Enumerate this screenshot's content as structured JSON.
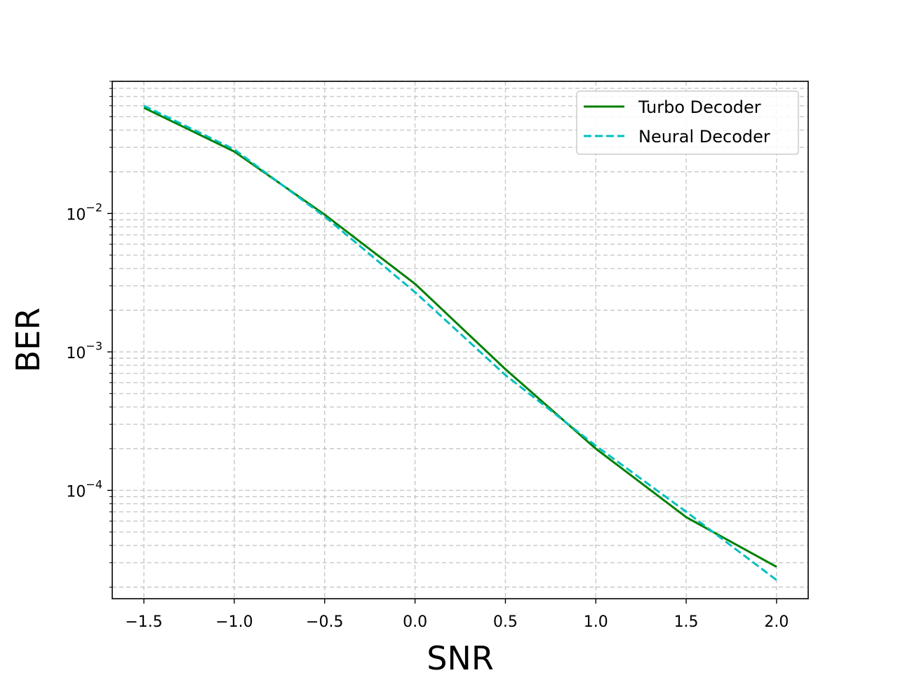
{
  "chart_data": {
    "type": "line",
    "xlabel": "SNR",
    "ylabel": "BER",
    "yscale": "log",
    "xlim": [
      -1.675,
      2.175
    ],
    "ylim": [
      1.65e-05,
      0.09
    ],
    "grid": true,
    "legend_position": "upper-right",
    "x_ticks": [
      {
        "value": -1.5,
        "label": "−1.5"
      },
      {
        "value": -1.0,
        "label": "−1.0"
      },
      {
        "value": -0.5,
        "label": "−0.5"
      },
      {
        "value": 0.0,
        "label": "0.0"
      },
      {
        "value": 0.5,
        "label": "0.5"
      },
      {
        "value": 1.0,
        "label": "1.0"
      },
      {
        "value": 1.5,
        "label": "1.5"
      },
      {
        "value": 2.0,
        "label": "2.0"
      }
    ],
    "y_ticks": [
      {
        "value": 0.01,
        "base": "10",
        "exp": "−2"
      },
      {
        "value": 0.001,
        "base": "10",
        "exp": "−3"
      },
      {
        "value": 0.0001,
        "base": "10",
        "exp": "−4"
      }
    ],
    "x": [
      -1.5,
      -1.0,
      -0.5,
      0.0,
      0.5,
      1.0,
      1.5,
      2.0
    ],
    "series": [
      {
        "name": "Turbo Decoder",
        "color": "#008000",
        "style": "solid",
        "values": [
          0.058,
          0.028,
          0.0098,
          0.0031,
          0.00075,
          0.0002,
          6.4e-05,
          2.8e-05
        ]
      },
      {
        "name": "Neural Decoder",
        "color": "#00bfbf",
        "style": "dashed",
        "values": [
          0.06,
          0.029,
          0.0095,
          0.0027,
          0.00068,
          0.00021,
          7e-05,
          2.25e-05
        ]
      }
    ]
  }
}
